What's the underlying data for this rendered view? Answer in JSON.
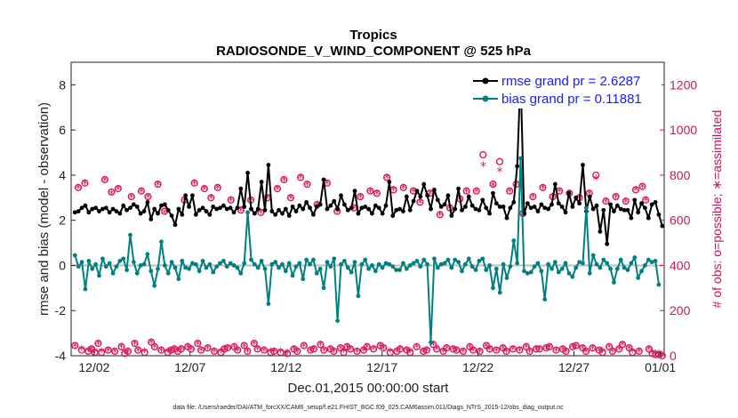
{
  "chart_data": {
    "type": "line",
    "title": "Tropics",
    "subtitle": "RADIOSONDE_V_WIND_COMPONENT @ 525 hPa",
    "xlabel": "Dec.01,2015 00:00:00 start",
    "ylabel": "rmse and bias (model - observation)",
    "y2label": "# of obs: o=possible; ∗=assimilated",
    "footnote": "data file: /Users/raeder/DAI/ATM_forcXX/CAM6_setup/f.e21.FHIST_BGC.f09_025.CAM6assim.011/Diags_NTrS_2015-12/obs_diag_output.nc",
    "xlim": [
      0.3,
      31.2
    ],
    "ylim": [
      -4,
      9
    ],
    "y2lim": [
      0,
      1300
    ],
    "x_ticks": [
      {
        "x": 1.5,
        "label": "12/02"
      },
      {
        "x": 6.5,
        "label": "12/07"
      },
      {
        "x": 11.5,
        "label": "12/12"
      },
      {
        "x": 16.5,
        "label": "12/17"
      },
      {
        "x": 21.5,
        "label": "12/22"
      },
      {
        "x": 26.5,
        "label": "12/27"
      },
      {
        "x": 31.0,
        "label": "01/01"
      }
    ],
    "y_ticks": [
      -4,
      -2,
      0,
      2,
      4,
      6,
      8
    ],
    "y2_ticks": [
      0,
      200,
      400,
      600,
      800,
      1000,
      1200
    ],
    "grid": false,
    "legend_position": "top-right",
    "series": [
      {
        "name": "rmse grand pr = 2.6287",
        "color": "#000000",
        "values": [
          2.35,
          2.4,
          2.55,
          2.65,
          2.35,
          2.5,
          2.55,
          2.4,
          2.5,
          2.55,
          2.35,
          2.5,
          2.4,
          2.3,
          2.65,
          2.45,
          2.55,
          2.7,
          2.6,
          2.3,
          2.4,
          2.8,
          2.05,
          2.5,
          2.3,
          2.65,
          2.7,
          2.45,
          2.2,
          1.8,
          2.5,
          2.25,
          3.1,
          2.6,
          3.1,
          2.25,
          2.45,
          2.55,
          2.4,
          2.25,
          2.6,
          2.5,
          2.55,
          2.65,
          2.5,
          2.55,
          2.35,
          2.55,
          3.4,
          2.6,
          4.1,
          2.5,
          2.3,
          2.5,
          3.7,
          2.45,
          4.45,
          2.4,
          2.25,
          2.45,
          2.3,
          2.5,
          2.2,
          2.6,
          2.4,
          2.65,
          2.5,
          2.8,
          2.55,
          2.25,
          2.6,
          2.7,
          3.8,
          2.5,
          2.65,
          2.85,
          2.5,
          3.1,
          2.7,
          2.45,
          2.55,
          3.3,
          2.3,
          2.55,
          2.6,
          2.5,
          2.3,
          2.65,
          2.55,
          2.3,
          2.65,
          3.7,
          2.2,
          2.45,
          2.5,
          2.4,
          3.05,
          2.45,
          2.85,
          3.3,
          3.05,
          3.6,
          3.1,
          2.5,
          3.35,
          2.9,
          2.6,
          2.7,
          3.1,
          2.2,
          2.5,
          3.4,
          2.45,
          2.6,
          3.05,
          2.65,
          2.5,
          2.45,
          2.9,
          2.55,
          2.3,
          3.2,
          2.75,
          2.6,
          2.6,
          2.1,
          2.55,
          2.8,
          4.4,
          8.5,
          2.3,
          2.75,
          2.55,
          2.6,
          2.4,
          2.7,
          2.55,
          2.5,
          2.7,
          3.6,
          2.75,
          2.6,
          2.35,
          3.2,
          2.6,
          3.0,
          2.75,
          4.45,
          2.4,
          3.05,
          2.5,
          2.65,
          1.5,
          2.45,
          0.95,
          2.7,
          2.4,
          2.65,
          2.5,
          2.45,
          2.45,
          2.1,
          2.9,
          2.35,
          2.75,
          2.55,
          2.1,
          2.7,
          2.8,
          2.25,
          1.75
        ]
      },
      {
        "name": "bias grand pr = 0.11881",
        "color": "#008080",
        "values": [
          0.45,
          -0.05,
          0.15,
          -1.05,
          0.2,
          -0.15,
          0.05,
          -0.45,
          0.3,
          -0.05,
          0.1,
          -0.35,
          -0.05,
          0.2,
          0.3,
          -0.2,
          1.35,
          0.15,
          -0.35,
          0.0,
          0.05,
          0.5,
          -0.25,
          -0.9,
          -0.15,
          1.05,
          0.0,
          -0.35,
          0.15,
          -0.1,
          -0.6,
          0.2,
          -0.1,
          -0.15,
          0.1,
          0.05,
          -0.25,
          0.2,
          -0.1,
          0.05,
          -0.3,
          -0.05,
          0.1,
          0.2,
          -0.05,
          0.1,
          0.0,
          -0.1,
          -0.35,
          0.1,
          2.35,
          0.25,
          0.05,
          -0.1,
          0.2,
          -0.15,
          -1.7,
          0.05,
          0.15,
          -0.1,
          0.05,
          -0.25,
          0.1,
          -0.45,
          -0.05,
          0.1,
          -0.6,
          0.25,
          0.05,
          0.25,
          -0.35,
          -0.15,
          -1.0,
          0.15,
          -0.05,
          0.3,
          -2.45,
          0.05,
          0.2,
          -0.1,
          -0.3,
          0.15,
          -1.35,
          0.05,
          0.25,
          -0.15,
          0.0,
          -0.25,
          0.05,
          -0.1,
          0.1,
          0.05,
          -0.05,
          -0.2,
          -0.2,
          0.1,
          -0.15,
          0.0,
          0.1,
          0.2,
          -0.05,
          0.25,
          0.05,
          -3.4,
          0.3,
          -0.1,
          0.05,
          0.1,
          0.25,
          -0.1,
          0.25,
          0.15,
          -0.25,
          0.05,
          0.3,
          -0.05,
          -0.2,
          0.2,
          0.3,
          -0.2,
          0.0,
          -1.0,
          -0.15,
          -1.2,
          0.05,
          -0.55,
          -0.05,
          1.1,
          0.1,
          4.75,
          -0.25,
          -0.35,
          -0.3,
          -0.05,
          0.1,
          -0.25,
          -1.5,
          0.05,
          -0.15,
          0.15,
          -0.3,
          -0.15,
          0.1,
          -0.35,
          -0.5,
          -0.1,
          0.15,
          0.1,
          2.55,
          -0.35,
          0.45,
          0.05,
          -0.1,
          0.25,
          0.1,
          -0.15,
          -0.75,
          -0.15,
          0.25,
          -0.1,
          -0.2,
          0.1,
          0.35,
          -0.55,
          -0.25,
          0.0,
          0.25,
          0.15,
          0.2,
          -0.85
        ]
      },
      {
        "name": "obs possible",
        "color": "#d81b60",
        "marker": "o",
        "axis": "right",
        "values": [
          45,
          745,
          25,
          765,
          20,
          30,
          15,
          55,
          15,
          780,
          25,
          725,
          20,
          740,
          40,
          10,
          20,
          705,
          55,
          25,
          730,
          15,
          705,
          60,
          40,
          760,
          25,
          640,
          15,
          25,
          30,
          20,
          30,
          690,
          40,
          30,
          765,
          55,
          25,
          740,
          35,
          700,
          20,
          745,
          15,
          30,
          35,
          690,
          40,
          25,
          645,
          45,
          20,
          690,
          55,
          30,
          635,
          25,
          700,
          15,
          20,
          740,
          15,
          780,
          10,
          700,
          30,
          20,
          790,
          45,
          760,
          25,
          30,
          670,
          50,
          25,
          765,
          30,
          20,
          640,
          35,
          15,
          40,
          30,
          655,
          20,
          705,
          25,
          40,
          730,
          30,
          720,
          45,
          35,
          790,
          15,
          735,
          20,
          30,
          745,
          25,
          15,
          730,
          40,
          680,
          20,
          25,
          720,
          50,
          30,
          625,
          20,
          35,
          655,
          30,
          25,
          695,
          20,
          730,
          40,
          25,
          730,
          20,
          890,
          45,
          30,
          760,
          25,
          860,
          35,
          20,
          730,
          30,
          760,
          25,
          630,
          40,
          20,
          705,
          30,
          30,
          745,
          35,
          40,
          705,
          25,
          730,
          30,
          20,
          720,
          40,
          45,
          700,
          35,
          20,
          720,
          35,
          800,
          25,
          15,
          685,
          40,
          20,
          705,
          30,
          50,
          685,
          35,
          15,
          735,
          20,
          750,
          690,
          30,
          10,
          5,
          5,
          0
        ]
      },
      {
        "name": "obs assimilated",
        "color": "#d81b60",
        "marker": "*",
        "axis": "right",
        "values": [
          40,
          740,
          25,
          760,
          20,
          25,
          15,
          50,
          15,
          775,
          20,
          715,
          15,
          735,
          35,
          10,
          15,
          700,
          50,
          20,
          725,
          15,
          700,
          55,
          35,
          755,
          20,
          630,
          15,
          20,
          25,
          15,
          25,
          685,
          35,
          25,
          760,
          50,
          20,
          735,
          30,
          695,
          15,
          740,
          15,
          25,
          30,
          685,
          35,
          20,
          640,
          40,
          15,
          685,
          50,
          25,
          630,
          20,
          695,
          15,
          15,
          735,
          15,
          775,
          10,
          695,
          25,
          15,
          785,
          40,
          755,
          20,
          25,
          665,
          45,
          20,
          760,
          25,
          15,
          635,
          30,
          15,
          35,
          25,
          650,
          15,
          700,
          20,
          35,
          725,
          25,
          715,
          40,
          30,
          785,
          15,
          730,
          15,
          25,
          740,
          20,
          15,
          725,
          35,
          675,
          15,
          20,
          715,
          45,
          25,
          620,
          15,
          30,
          650,
          25,
          20,
          690,
          15,
          725,
          35,
          20,
          725,
          15,
          840,
          40,
          25,
          750,
          20,
          815,
          30,
          15,
          725,
          25,
          755,
          20,
          625,
          35,
          15,
          700,
          25,
          25,
          740,
          30,
          35,
          700,
          20,
          725,
          25,
          15,
          715,
          35,
          40,
          695,
          30,
          15,
          715,
          30,
          780,
          20,
          15,
          680,
          35,
          15,
          700,
          25,
          45,
          680,
          30,
          15,
          730,
          15,
          745,
          685,
          25,
          10,
          5,
          5,
          0
        ]
      }
    ]
  }
}
